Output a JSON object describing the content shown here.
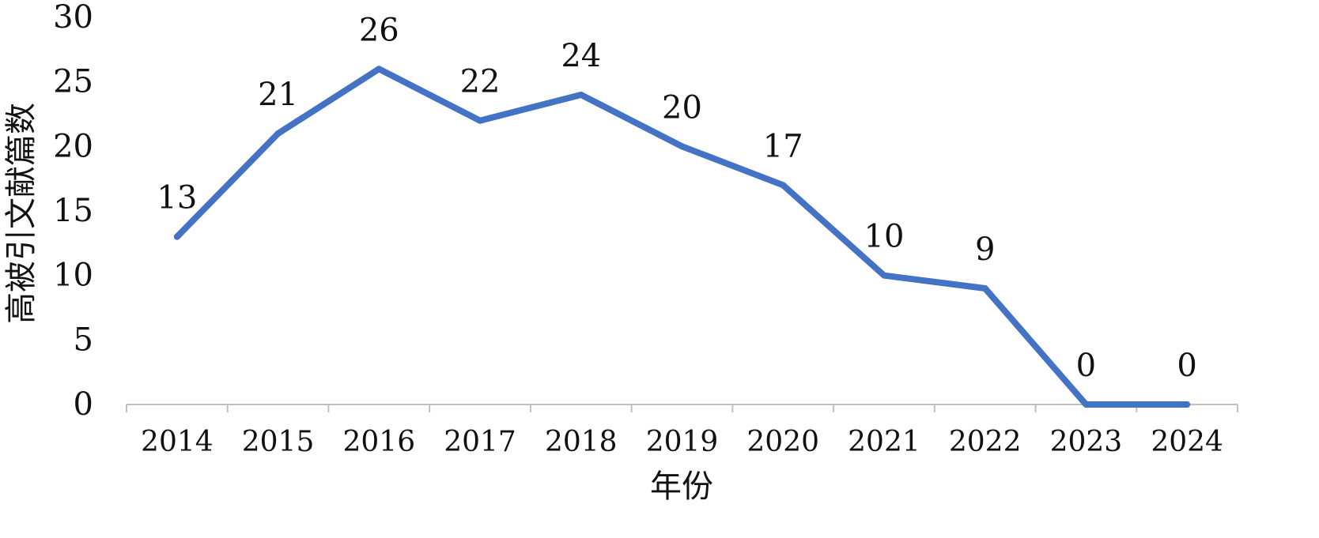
{
  "chart_data": {
    "type": "line",
    "title": "",
    "xlabel": "年份",
    "ylabel": "高被引文献篇数",
    "categories": [
      "2014",
      "2015",
      "2016",
      "2017",
      "2018",
      "2019",
      "2020",
      "2021",
      "2022",
      "2023",
      "2024"
    ],
    "series": [
      {
        "values": [
          13,
          21,
          26,
          22,
          24,
          20,
          17,
          10,
          9,
          0,
          0
        ],
        "color": "#4472C4"
      }
    ],
    "ylim": [
      0,
      30
    ],
    "yticks": [
      "0",
      "5",
      "10",
      "15",
      "20",
      "25",
      "30"
    ],
    "data_labels": [
      "13",
      "21",
      "26",
      "22",
      "24",
      "20",
      "17",
      "10",
      "9",
      "0",
      "0"
    ],
    "grid": false,
    "legend": "none"
  }
}
